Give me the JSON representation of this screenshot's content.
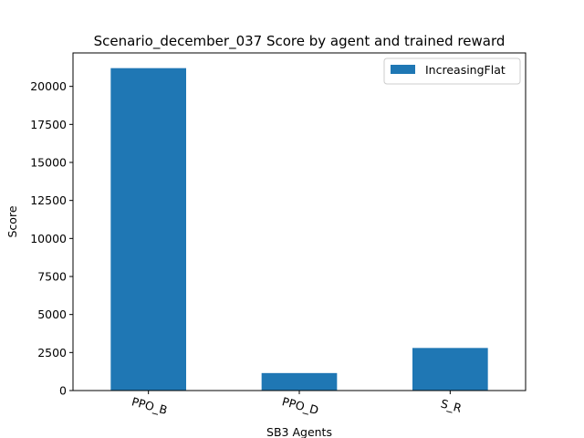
{
  "chart_data": {
    "type": "bar",
    "title": "Scenario_december_037 Score by agent and trained reward",
    "xlabel": "SB3 Agents",
    "ylabel": "Score",
    "categories": [
      "PPO_B",
      "PPO_D",
      "S_R"
    ],
    "series": [
      {
        "name": "IncreasingFlat",
        "color": "#1f77b4",
        "values": [
          21200,
          1150,
          2800
        ]
      }
    ],
    "ylim": [
      0,
      22200
    ],
    "yticks": [
      0,
      2500,
      5000,
      7500,
      10000,
      12500,
      15000,
      17500,
      20000
    ],
    "ytick_labels": [
      "0",
      "2500",
      "5000",
      "7500",
      "10000",
      "12500",
      "15000",
      "17500",
      "20000"
    ],
    "xtick_rotation": -15,
    "grid": false,
    "legend_position": "top-right"
  }
}
